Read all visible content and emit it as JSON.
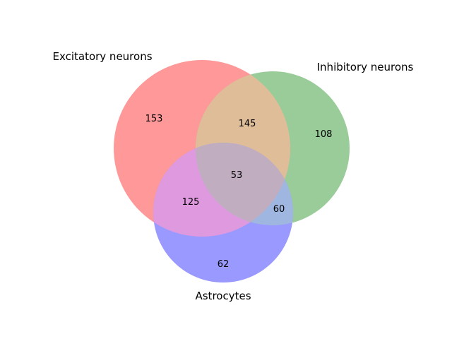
{
  "venn": {
    "sets": [
      {
        "name": "Excitatory neurons",
        "color": "#ff9999"
      },
      {
        "name": "Inhibitory neurons",
        "color": "#99cc99"
      },
      {
        "name": "Astrocytes",
        "color": "#9999ff"
      }
    ],
    "regions": {
      "excitatory_only": "153",
      "inhibitory_only": "108",
      "astrocytes_only": "62",
      "excitatory_inhibitory": "145",
      "excitatory_astrocytes": "125",
      "inhibitory_astrocytes": "60",
      "all_three": "53"
    },
    "colors": {
      "exc_inh": "#e0bd99",
      "exc_ast": "#df99df",
      "inh_ast": "#9fb7e0",
      "all": "#c0aec0"
    }
  }
}
